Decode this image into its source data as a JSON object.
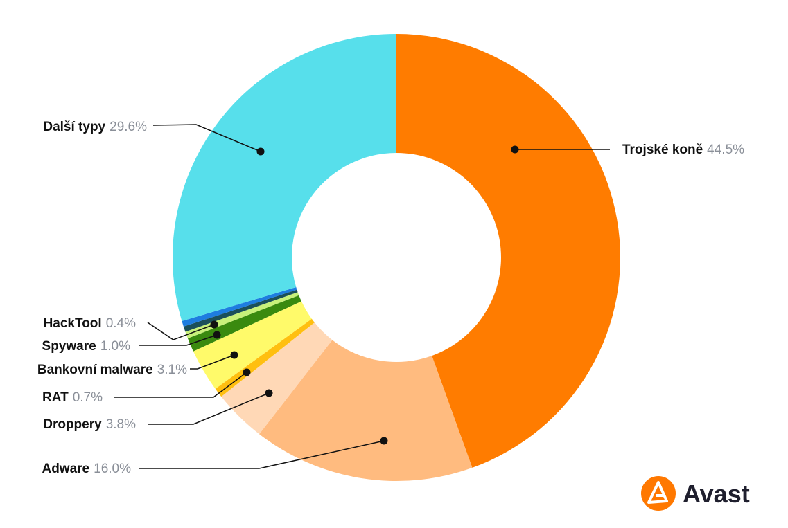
{
  "chart_data": {
    "type": "donut",
    "slices": [
      {
        "name": "Trojské koně",
        "value": 44.5,
        "value_label": "44.5%",
        "color": "#ff7c00"
      },
      {
        "name": "Adware",
        "value": 16.0,
        "value_label": "16.0%",
        "color": "#ffbb7f"
      },
      {
        "name": "Droppery",
        "value": 3.8,
        "value_label": "3.8%",
        "color": "#ffd8b6"
      },
      {
        "name": "RAT",
        "value": 0.7,
        "value_label": "0.7%",
        "color": "#ffbf10"
      },
      {
        "name": "Bankovní malware",
        "value": 3.1,
        "value_label": "3.1%",
        "color": "#fffa6a"
      },
      {
        "name": "Spyware",
        "value": 1.0,
        "value_label": "1.0%",
        "color": "#3a8a0f"
      },
      {
        "name": "",
        "value": 0.5,
        "value_label": "",
        "color": "#c8f07a"
      },
      {
        "name": "HackTool",
        "value": 0.4,
        "value_label": "0.4%",
        "color": "#1b4f5a"
      },
      {
        "name": "",
        "value": 0.4,
        "value_label": "",
        "color": "#1e7de0"
      },
      {
        "name": "Další typy",
        "value": 29.6,
        "value_label": "29.6%",
        "color": "#57dfeb"
      }
    ]
  },
  "brand": {
    "name": "Avast",
    "color": "#ff7800"
  }
}
